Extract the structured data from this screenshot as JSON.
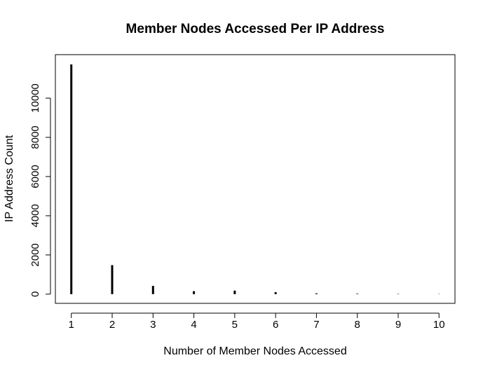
{
  "chart_data": {
    "type": "bar",
    "title": "Member Nodes Accessed Per IP Address",
    "xlabel": "Number of Member Nodes Accessed",
    "ylabel": "IP Address Count",
    "categories": [
      "1",
      "2",
      "3",
      "4",
      "5",
      "6",
      "7",
      "8",
      "9",
      "10"
    ],
    "x": [
      1,
      2,
      3,
      4,
      5,
      6,
      7,
      8,
      9,
      10
    ],
    "values": [
      11720,
      1480,
      420,
      150,
      180,
      100,
      40,
      25,
      15,
      10
    ],
    "xlim": [
      0.61,
      10.39
    ],
    "ylim": [
      -470,
      12220
    ],
    "x_ticks": [
      "1",
      "2",
      "3",
      "4",
      "5",
      "6",
      "7",
      "8",
      "9",
      "10"
    ],
    "y_ticks": [
      0,
      2000,
      4000,
      6000,
      8000,
      10000
    ],
    "y_tick_labels": [
      "0",
      "2000",
      "4000",
      "6000",
      "8000",
      "10000"
    ],
    "grid": false,
    "legend": "none",
    "bar_color": "#000000"
  }
}
